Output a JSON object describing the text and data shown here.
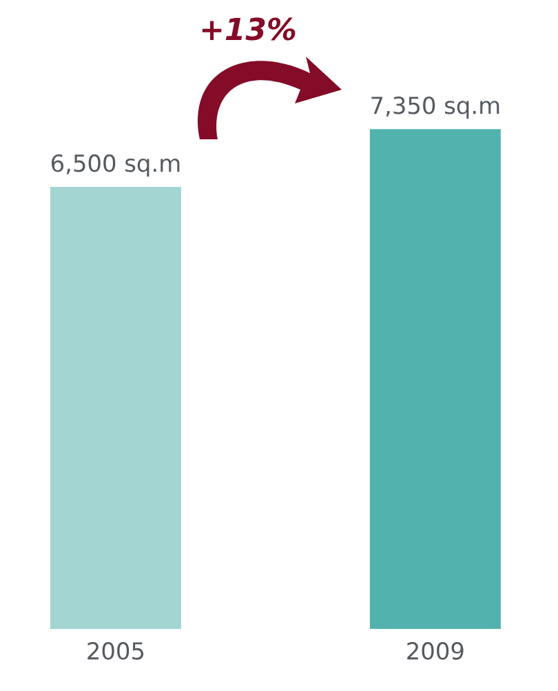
{
  "chart_data": {
    "type": "bar",
    "categories": [
      "2005",
      "2009"
    ],
    "values": [
      6500,
      7350
    ],
    "value_labels": [
      "6,500 sq.m",
      "7,350 sq.m"
    ],
    "colors": [
      "#a3d6d3",
      "#52b3ae"
    ],
    "annotations": [
      "+13%"
    ]
  }
}
